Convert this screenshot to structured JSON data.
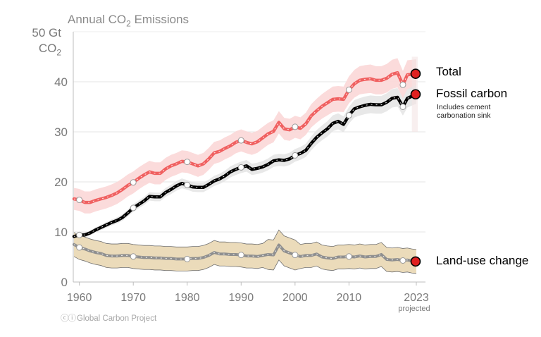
{
  "chart_data": {
    "type": "line",
    "title_main": "Annual CO",
    "title_sub": "2",
    "title_tail": " Emissions",
    "ylabel_line1": "50 Gt",
    "ylabel_line2_main": "CO",
    "ylabel_line2_sub": "2",
    "ylim": [
      0,
      50
    ],
    "xlim": [
      1959,
      2023
    ],
    "yticks": [
      0,
      10,
      20,
      30,
      40
    ],
    "xticks": [
      1960,
      1970,
      1980,
      1990,
      2000,
      2010,
      2023
    ],
    "projected_label": "projected",
    "grid": "horizontal",
    "x": [
      1959,
      1960,
      1961,
      1962,
      1963,
      1964,
      1965,
      1966,
      1967,
      1968,
      1969,
      1970,
      1971,
      1972,
      1973,
      1974,
      1975,
      1976,
      1977,
      1978,
      1979,
      1980,
      1981,
      1982,
      1983,
      1984,
      1985,
      1986,
      1987,
      1988,
      1989,
      1990,
      1991,
      1992,
      1993,
      1994,
      1995,
      1996,
      1997,
      1998,
      1999,
      2000,
      2001,
      2002,
      2003,
      2004,
      2005,
      2006,
      2007,
      2008,
      2009,
      2010,
      2011,
      2012,
      2013,
      2014,
      2015,
      2016,
      2017,
      2018,
      2019,
      2020,
      2021,
      2022,
      2023
    ],
    "series": [
      {
        "name": "Total",
        "color": "#f06060",
        "band_color": "#fbd9d9",
        "values": [
          16.6,
          16.4,
          15.9,
          15.9,
          16.3,
          16.6,
          16.9,
          17.3,
          17.8,
          18.5,
          19.3,
          19.9,
          20.7,
          21.4,
          22.0,
          21.7,
          21.7,
          22.6,
          23.2,
          23.6,
          24.1,
          24.0,
          23.6,
          23.2,
          23.6,
          24.6,
          25.8,
          26.1,
          26.7,
          27.2,
          27.9,
          28.3,
          27.9,
          27.6,
          28.0,
          28.8,
          29.6,
          30.1,
          31.9,
          30.6,
          30.4,
          31.0,
          30.7,
          31.6,
          33.2,
          34.2,
          35.1,
          35.8,
          36.5,
          36.6,
          36.5,
          38.4,
          39.6,
          40.3,
          40.5,
          40.6,
          40.3,
          40.3,
          40.7,
          41.5,
          41.8,
          39.4,
          41.4,
          41.5,
          41.6
        ],
        "markers": {
          "1960": 16.4,
          "1970": 19.9,
          "1980": 24.0,
          "1990": 28.3,
          "2000": 31.0,
          "2010": 38.4,
          "2020": 39.4
        },
        "end_value": 41.6,
        "label": "Total"
      },
      {
        "name": "Fossil carbon",
        "color": "#000000",
        "band_color": "#e4e4e4",
        "values": [
          9.1,
          9.4,
          9.4,
          9.8,
          10.4,
          10.9,
          11.4,
          11.9,
          12.3,
          12.9,
          13.8,
          14.8,
          15.5,
          16.2,
          17.1,
          17.0,
          17.0,
          17.9,
          18.5,
          19.2,
          19.7,
          19.4,
          19.0,
          18.9,
          18.9,
          19.5,
          20.2,
          20.6,
          21.2,
          22.0,
          22.5,
          22.9,
          23.2,
          22.5,
          22.7,
          23.0,
          23.5,
          24.2,
          24.4,
          24.3,
          24.6,
          25.3,
          25.7,
          26.3,
          27.7,
          28.9,
          29.8,
          30.6,
          31.7,
          32.1,
          31.5,
          33.3,
          34.6,
          35.0,
          35.3,
          35.5,
          35.4,
          35.4,
          35.9,
          36.7,
          36.9,
          35.0,
          36.7,
          37.1,
          37.5
        ],
        "markers": {
          "1960": 9.4,
          "1970": 14.8,
          "1980": 19.4,
          "1990": 22.9,
          "2000": 25.3,
          "2010": 33.3,
          "2020": 35.0
        },
        "end_value": 37.5,
        "label": "Fossil carbon",
        "note_line1": "Includes cement",
        "note_line2": "carbonation sink"
      },
      {
        "name": "Land-use change",
        "color": "#8f8f8f",
        "band_color": "#ead9b6",
        "values": [
          7.5,
          6.9,
          6.6,
          6.2,
          5.9,
          5.7,
          5.3,
          5.2,
          5.2,
          5.3,
          5.3,
          5.1,
          5.0,
          4.9,
          4.9,
          4.8,
          4.8,
          4.7,
          4.7,
          4.6,
          4.6,
          4.6,
          4.7,
          4.7,
          4.9,
          5.3,
          5.9,
          5.6,
          5.6,
          5.5,
          5.5,
          5.4,
          5.2,
          5.2,
          5.1,
          5.3,
          5.5,
          5.4,
          7.4,
          6.2,
          5.8,
          5.4,
          5.1,
          5.3,
          5.3,
          5.6,
          5.0,
          4.8,
          4.7,
          5.0,
          5.0,
          5.1,
          5.0,
          5.2,
          5.0,
          5.1,
          5.1,
          5.5,
          4.5,
          4.4,
          4.5,
          4.3,
          4.4,
          4.2,
          4.1
        ],
        "markers": {
          "1960": 6.9,
          "1970": 5.1,
          "1980": 4.6,
          "1990": 5.4,
          "2000": 5.4,
          "2010": 5.1,
          "2020": 4.3
        },
        "end_value": 4.1,
        "label": "Land-use change"
      }
    ],
    "end_marker_color": "#e02020"
  },
  "credit": {
    "cc": "ⓒⓘ",
    "text": "Global Carbon Project"
  }
}
